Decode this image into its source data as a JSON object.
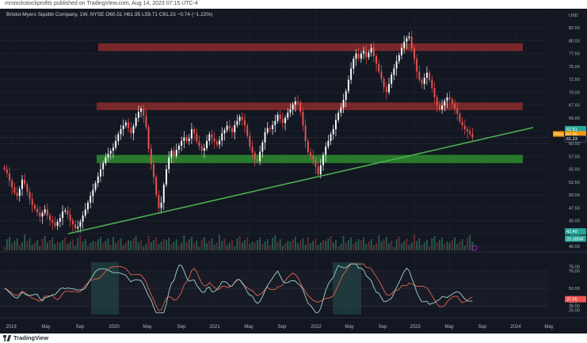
{
  "publish_line": "mrstockstockprofits published on TradingView.com, Aug 14, 2023 07:15 UTC-4",
  "legend": "Bristol-Myers Squibb Company, 1W, NYSE  O60.51  H61.95  L59.71  C61.23  −0.74 (−1.22%)",
  "currency": "USD",
  "price_ticks": [
    "82.50",
    "80.00",
    "77.50",
    "75.00",
    "72.50",
    "70.00",
    "67.50",
    "65.00",
    "62.50",
    "60.00",
    "57.50",
    "55.00",
    "52.50",
    "50.00",
    "47.50",
    "45.00",
    "42.50",
    "40.00"
  ],
  "price_badges": [
    {
      "text": "62.81",
      "color": "#26a69a",
      "label": "badge-high"
    },
    {
      "text": "61.95",
      "color": "#ff9800",
      "label": "badge-prev"
    },
    {
      "text": "61.23",
      "color": "#131722",
      "label": "badge-last"
    },
    {
      "text": "42.48",
      "color": "#26a69a",
      "label": "badge-volume"
    },
    {
      "text": "20.385M",
      "color": "#26a69a",
      "label": "badge-volume-value"
    }
  ],
  "prev_label": "Prev",
  "oscillator_ticks": [
    "75.00",
    "70.00",
    "50.00",
    "38.97",
    "35.04",
    "30.00",
    "25.00"
  ],
  "oscillator_badges": [
    {
      "text": "37.65",
      "color": "#ef5350"
    }
  ],
  "time_labels": [
    "2019",
    "May",
    "Sep",
    "2020",
    "May",
    "Sep",
    "2021",
    "May",
    "Sep",
    "2022",
    "May",
    "Sep",
    "2023",
    "May",
    "Sep",
    "2024",
    "May"
  ],
  "brand": "TradingView",
  "chart_data": {
    "type": "candlestick",
    "symbol": "Bristol-Myers Squibb Company",
    "interval": "1W",
    "exchange": "NYSE",
    "ylim": [
      40,
      85
    ],
    "weekly_close": [
      55.0,
      54.2,
      52.8,
      51.5,
      50.4,
      49.8,
      51.2,
      53.0,
      52.1,
      50.6,
      49.2,
      48.0,
      47.3,
      46.6,
      45.8,
      46.5,
      47.2,
      46.0,
      45.1,
      44.6,
      44.0,
      44.8,
      45.5,
      46.8,
      47.0,
      46.2,
      45.0,
      44.3,
      43.5,
      43.8,
      44.8,
      46.0,
      47.2,
      48.5,
      49.8,
      51.0,
      52.3,
      53.6,
      55.0,
      56.2,
      57.3,
      58.0,
      58.6,
      59.2,
      60.5,
      61.8,
      62.8,
      63.5,
      64.1,
      63.0,
      62.0,
      63.4,
      65.0,
      66.2,
      66.8,
      65.4,
      63.2,
      59.0,
      56.0,
      53.5,
      50.0,
      47.5,
      48.5,
      52.0,
      55.0,
      57.3,
      58.6,
      57.6,
      58.8,
      59.6,
      60.5,
      61.2,
      60.5,
      61.0,
      62.8,
      62.0,
      60.4,
      59.5,
      58.6,
      59.1,
      60.5,
      61.8,
      61.0,
      60.4,
      59.8,
      60.6,
      62.0,
      62.6,
      63.5,
      63.0,
      62.2,
      63.6,
      64.4,
      65.2,
      64.6,
      63.5,
      61.5,
      59.4,
      58.2,
      57.0,
      56.6,
      58.4,
      60.2,
      62.2,
      63.0,
      62.8,
      63.6,
      64.4,
      65.6,
      64.8,
      64.0,
      65.0,
      66.0,
      66.6,
      67.6,
      68.2,
      68.0,
      66.2,
      63.5,
      60.5,
      58.3,
      57.6,
      57.0,
      55.5,
      54.0,
      55.8,
      57.8,
      59.4,
      60.5,
      61.8,
      62.8,
      64.6,
      66.0,
      67.0,
      68.5,
      70.2,
      72.4,
      74.6,
      76.5,
      77.5,
      76.5,
      77.5,
      78.0,
      76.8,
      77.7,
      78.6,
      77.0,
      75.5,
      74.0,
      72.6,
      71.0,
      70.0,
      71.6,
      73.4,
      74.6,
      76.0,
      77.2,
      78.6,
      79.8,
      80.5,
      80.8,
      78.6,
      76.5,
      74.0,
      72.4,
      71.6,
      72.8,
      73.8,
      72.4,
      70.8,
      69.0,
      67.5,
      66.6,
      67.4,
      68.3,
      69.0,
      68.6,
      67.8,
      66.8,
      65.8,
      64.3,
      63.5,
      62.8,
      62.4,
      61.9,
      61.23
    ],
    "horizontal_zones": [
      {
        "from": 78.0,
        "to": 79.5,
        "color": "#8b2c2c"
      },
      {
        "from": 66.5,
        "to": 68.0,
        "color": "#8b2c2c"
      },
      {
        "from": 56.2,
        "to": 57.8,
        "color": "#2e8b2e"
      }
    ],
    "trendline": {
      "from": {
        "date": "2019-08",
        "value": 42.5
      },
      "to": {
        "date": "2023-10",
        "value": 63.0
      },
      "color": "#4caf50"
    },
    "last_price": 61.23
  }
}
